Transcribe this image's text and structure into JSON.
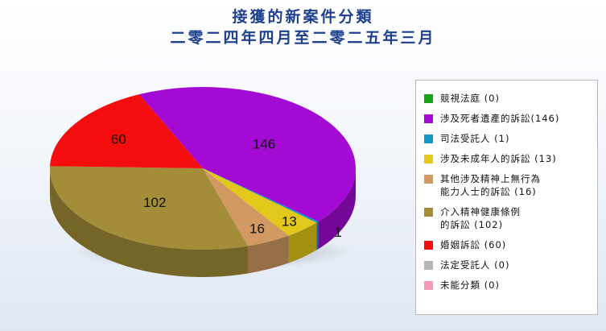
{
  "title": {
    "line1": "接獲的新案件分類",
    "line2": "二零二四年四月至二零二五年三月"
  },
  "chart_data": {
    "type": "pie",
    "title": "接獲的新案件分類 二零二四年四月至二零二五年三月",
    "categories": [
      "競視法庭",
      "涉及死者遺產的訴訟",
      "司法受託人",
      "涉及未成年人的訴訟",
      "其他涉及精神上無行為能力人士的訴訟",
      "介入精神健康條例的訴訟",
      "婚姻訴訟",
      "法定受託人",
      "未能分類"
    ],
    "values": [
      0,
      146,
      1,
      13,
      16,
      102,
      60,
      0,
      0
    ],
    "colors": [
      "#1aa21a",
      "#a30ad3",
      "#1296c8",
      "#e2c81a",
      "#d29a62",
      "#a38d38",
      "#f30d0d",
      "#b5b5b5",
      "#f49ab6"
    ],
    "data_labels": [
      "",
      "146",
      "1",
      "13",
      "16",
      "102",
      "60",
      "",
      ""
    ],
    "legend_position": "right",
    "three_d": true
  },
  "legend": {
    "items": [
      {
        "label": "競視法庭 (0)",
        "color": "#1aa21a"
      },
      {
        "label": "涉及死者遺產的訴訟(146)",
        "color": "#a30ad3"
      },
      {
        "label": "司法受託人 (1)",
        "color": "#1296c8"
      },
      {
        "label": "涉及未成年人的訴訟 (13)",
        "color": "#e2c81a"
      },
      {
        "label": "其他涉及精神上無行為\n能力人士的訴訟 (16)",
        "color": "#d29a62"
      },
      {
        "label": "介入精神健康條例\n的訴訟 (102)",
        "color": "#a38d38"
      },
      {
        "label": "婚姻訴訟 (60)",
        "color": "#f30d0d"
      },
      {
        "label": "法定受託人 (0)",
        "color": "#b5b5b5"
      },
      {
        "label": "未能分類 (0)",
        "color": "#f49ab6"
      }
    ]
  }
}
